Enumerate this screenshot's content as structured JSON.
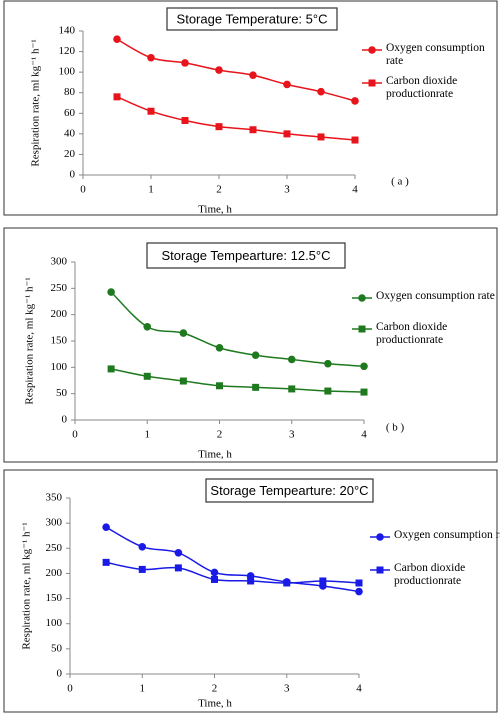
{
  "chart_data": [
    {
      "type": "line",
      "title": "Storage Temperature: 5°C",
      "x_label": "Time, h",
      "y_label": "Respiration rate, ml kg⁻¹ h⁻¹",
      "annotation": "( a )",
      "x": [
        0.5,
        1,
        1.5,
        2,
        2.5,
        3,
        3.5,
        4
      ],
      "series": [
        {
          "name": "Oxygen consumption rate",
          "color": "#e8141b",
          "marker": "circle",
          "values": [
            132,
            114,
            109,
            102,
            97,
            88,
            81,
            72
          ]
        },
        {
          "name": "Carbon dioxide productionrate",
          "color": "#e8141b",
          "marker": "square",
          "values": [
            76,
            62,
            53,
            47,
            44,
            40,
            37,
            34
          ]
        }
      ],
      "xlim": [
        0,
        4
      ],
      "xticks": [
        0,
        1,
        2,
        3,
        4
      ],
      "ylim": [
        0,
        140
      ],
      "yticks": [
        0,
        20,
        40,
        60,
        80,
        100,
        120,
        140
      ]
    },
    {
      "type": "line",
      "title": "Storage Tempearture: 12.5°C",
      "x_label": "Time, h",
      "y_label": "Respiration rate, ml kg⁻¹ h⁻¹",
      "annotation": "( b )",
      "x": [
        0.5,
        1,
        1.5,
        2,
        2.5,
        3,
        3.5,
        4
      ],
      "series": [
        {
          "name": "Oxygen consumption rate",
          "color": "#1f7a1f",
          "marker": "circle",
          "values": [
            243,
            177,
            165,
            137,
            123,
            115,
            107,
            102
          ]
        },
        {
          "name": "Carbon dioxide productionrate",
          "color": "#1f7a1f",
          "marker": "square",
          "values": [
            97,
            83,
            74,
            65,
            62,
            59,
            55,
            53
          ]
        }
      ],
      "xlim": [
        0,
        4
      ],
      "xticks": [
        0,
        1,
        2,
        3,
        4
      ],
      "ylim": [
        0,
        300
      ],
      "yticks": [
        0,
        50,
        100,
        150,
        200,
        250,
        300
      ]
    },
    {
      "type": "line",
      "title": "Storage Tempearture: 20°C",
      "x_label": "Time, h",
      "y_label": "Respiration rate, ml kg⁻¹ h⁻¹",
      "x": [
        0.5,
        1,
        1.5,
        2,
        2.5,
        3,
        3.5,
        4
      ],
      "series": [
        {
          "name": "Oxygen consumption rate",
          "color": "#1a1ae6",
          "marker": "circle",
          "values": [
            292,
            253,
            241,
            202,
            195,
            183,
            175,
            164
          ]
        },
        {
          "name": "Carbon dioxide productionrate",
          "color": "#1a1ae6",
          "marker": "square",
          "values": [
            222,
            208,
            211,
            188,
            185,
            181,
            185,
            181
          ]
        }
      ],
      "xlim": [
        0,
        4
      ],
      "xticks": [
        0,
        1,
        2,
        3,
        4
      ],
      "ylim": [
        0,
        350
      ],
      "yticks": [
        0,
        50,
        100,
        150,
        200,
        250,
        300,
        350
      ]
    }
  ]
}
